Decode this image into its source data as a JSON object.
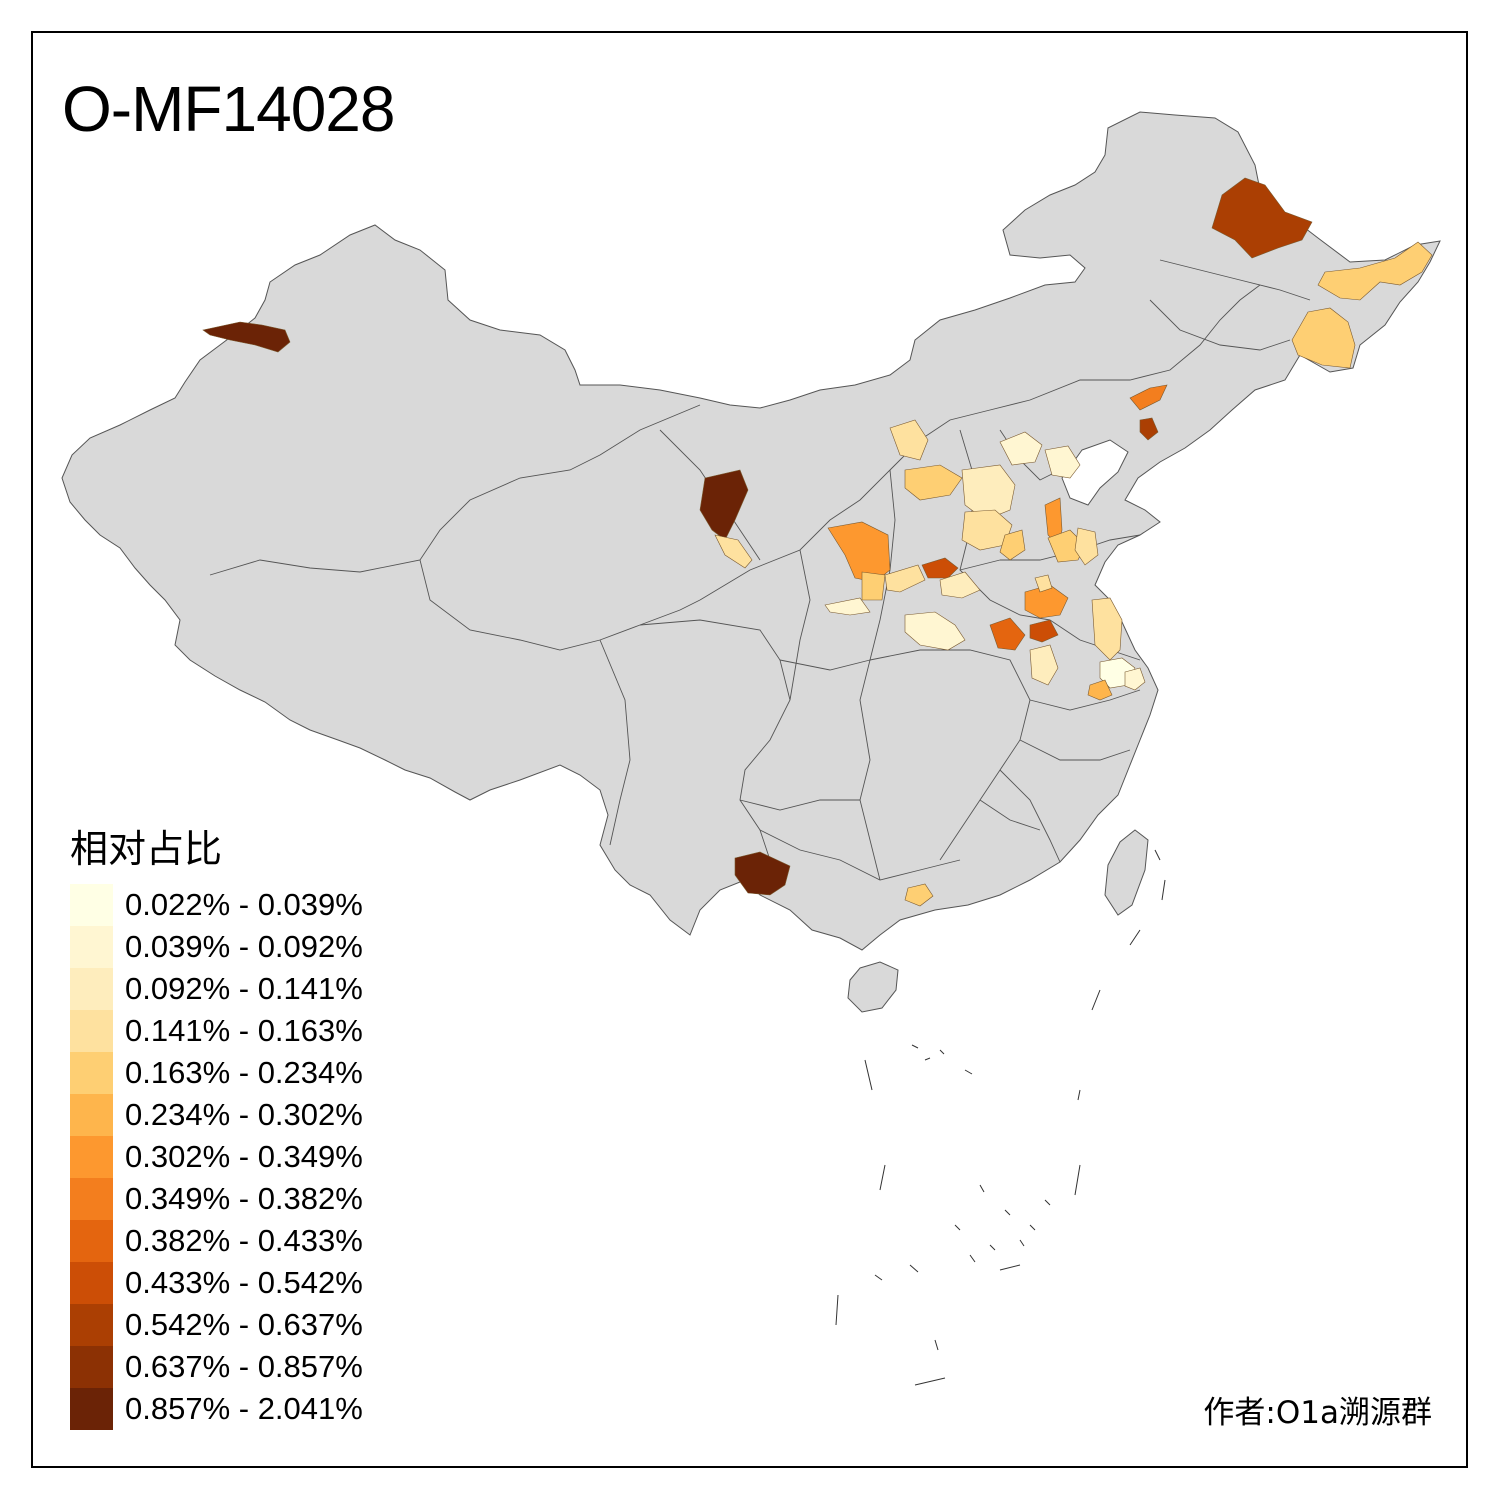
{
  "title": "O-MF14028",
  "legend": {
    "title": "相对占比",
    "items": [
      {
        "label": "0.022% - 0.039%",
        "color": "#ffffe5"
      },
      {
        "label": "0.039% - 0.092%",
        "color": "#fff6d2"
      },
      {
        "label": "0.092% - 0.141%",
        "color": "#feedbd"
      },
      {
        "label": "0.141% - 0.163%",
        "color": "#fee19f"
      },
      {
        "label": "0.163% - 0.234%",
        "color": "#fecf73"
      },
      {
        "label": "0.234% - 0.302%",
        "color": "#feb54c"
      },
      {
        "label": "0.302% - 0.349%",
        "color": "#fd982f"
      },
      {
        "label": "0.349% - 0.382%",
        "color": "#f37e1e"
      },
      {
        "label": "0.382% - 0.433%",
        "color": "#e4650f"
      },
      {
        "label": "0.433% - 0.542%",
        "color": "#cc4e06"
      },
      {
        "label": "0.542% - 0.637%",
        "color": "#ab3f03"
      },
      {
        "label": "0.637% - 0.857%",
        "color": "#8c3104"
      },
      {
        "label": "0.857% - 2.041%",
        "color": "#6b2306"
      }
    ]
  },
  "credit": "作者:O1a溯源群",
  "map_style": {
    "land_color": "#d9d9d9",
    "border_color": "#555555"
  }
}
